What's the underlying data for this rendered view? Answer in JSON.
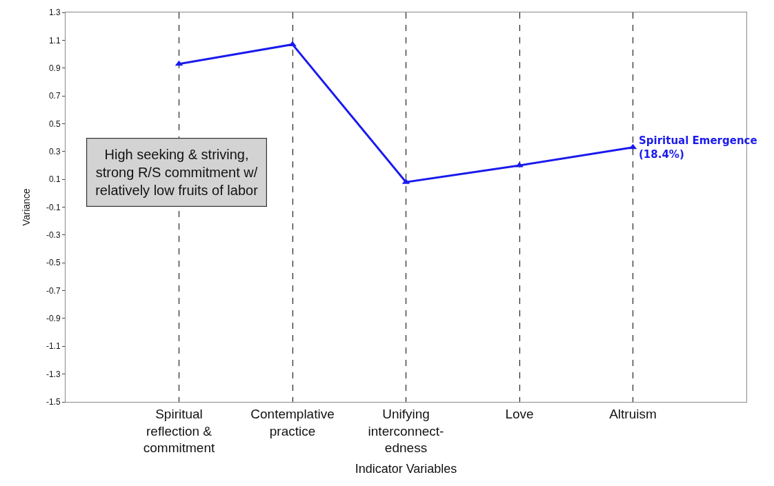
{
  "chart_data": {
    "type": "line",
    "xlabel": "Indicator Variables",
    "ylabel": "Variance",
    "categories": [
      "Spiritual\nreflection &\ncommitment",
      "Contemplative\npractice",
      "Unifying\ninterconnect-\nedness",
      "Love",
      "Altruism"
    ],
    "series": [
      {
        "name": "Spiritual Emergence\n(18.4%)",
        "color": "#1a1aee",
        "values": [
          0.93,
          1.07,
          0.08,
          0.2,
          0.33
        ]
      }
    ],
    "ylim": [
      -1.5,
      1.3
    ],
    "yticks": [
      -1.5,
      -1.3,
      -1.1,
      -0.9,
      -0.7,
      -0.5,
      -0.3,
      -0.1,
      0.1,
      0.3,
      0.5,
      0.7,
      0.9,
      1.1,
      1.3
    ],
    "grid": "x",
    "marker": "triangle",
    "line_style": "solid",
    "legend": false,
    "annotations": [
      "High seeking & striving,\nstrong R/S commitment w/\nrelatively low fruits of labor"
    ]
  }
}
